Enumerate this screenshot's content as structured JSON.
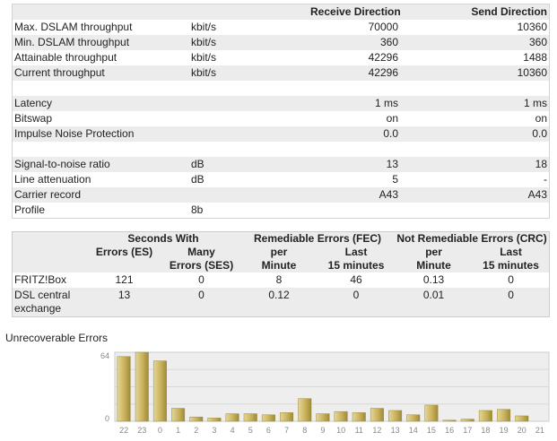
{
  "line_table": {
    "headers": {
      "receive": "Receive Direction",
      "send": "Send Direction"
    },
    "rows": [
      {
        "label": "Max. DSLAM throughput",
        "unit": "kbit/s",
        "receive": "70000",
        "send": "10360"
      },
      {
        "label": "Min. DSLAM throughput",
        "unit": "kbit/s",
        "receive": "360",
        "send": "360"
      },
      {
        "label": "Attainable throughput",
        "unit": "kbit/s",
        "receive": "42296",
        "send": "1488"
      },
      {
        "label": "Current throughput",
        "unit": "kbit/s",
        "receive": "42296",
        "send": "10360"
      },
      {
        "label": "Latency",
        "unit": "",
        "receive": "1 ms",
        "send": "1 ms"
      },
      {
        "label": "Bitswap",
        "unit": "",
        "receive": "on",
        "send": "on"
      },
      {
        "label": "Impulse Noise Protection",
        "unit": "",
        "receive": "0.0",
        "send": "0.0"
      },
      {
        "label": "Signal-to-noise ratio",
        "unit": "dB",
        "receive": "13",
        "send": "18"
      },
      {
        "label": "Line attenuation",
        "unit": "dB",
        "receive": "5",
        "send": "-"
      },
      {
        "label": "Carrier record",
        "unit": "",
        "receive": "A43",
        "send": "A43"
      },
      {
        "label": "Profile",
        "unit": "8b",
        "receive": "",
        "send": ""
      }
    ]
  },
  "error_table": {
    "group_headers": {
      "seconds_with": "Seconds With",
      "fec": "Remediable Errors (FEC)",
      "crc": "Not Remediable Errors (CRC)"
    },
    "sub_headers": {
      "es": "Errors (ES)",
      "ses_1": "Many",
      "ses_2": "Errors (SES)",
      "fec_min_1": "per",
      "fec_min_2": "Minute",
      "fec_15_1": "Last",
      "fec_15_2": "15 minutes",
      "crc_min_1": "per",
      "crc_min_2": "Minute",
      "crc_15_1": "Last",
      "crc_15_2": "15 minutes"
    },
    "rows": [
      {
        "label_1": "FRITZ!Box",
        "label_2": "",
        "es": "121",
        "ses": "0",
        "fec_min": "8",
        "fec_15": "46",
        "crc_min": "0.13",
        "crc_15": "0"
      },
      {
        "label_1": "DSL central",
        "label_2": "exchange",
        "es": "13",
        "ses": "0",
        "fec_min": "0.12",
        "fec_15": "0",
        "crc_min": "0.01",
        "crc_15": "0"
      }
    ]
  },
  "chart_title": "Unrecoverable Errors",
  "chart_data": {
    "type": "bar",
    "title": "Unrecoverable Errors",
    "categories": [
      "22",
      "23",
      "0",
      "1",
      "2",
      "3",
      "4",
      "5",
      "6",
      "7",
      "8",
      "9",
      "10",
      "11",
      "12",
      "13",
      "14",
      "15",
      "16",
      "17",
      "18",
      "19",
      "20",
      "21"
    ],
    "values": [
      60,
      64,
      56,
      12,
      4,
      3,
      7,
      7,
      6,
      8,
      21,
      7,
      9,
      8,
      12,
      10,
      6,
      15,
      1,
      2,
      10,
      11,
      5,
      0
    ],
    "ylim": [
      0,
      64
    ],
    "yticks": [
      "64",
      "0"
    ],
    "colors": {
      "bar": "#c9b25c",
      "bar_light": "#e4d798",
      "bar_dark": "#9e8a3a",
      "plot_bg": "#eeeeee",
      "grid": "#d8d8d8"
    }
  }
}
